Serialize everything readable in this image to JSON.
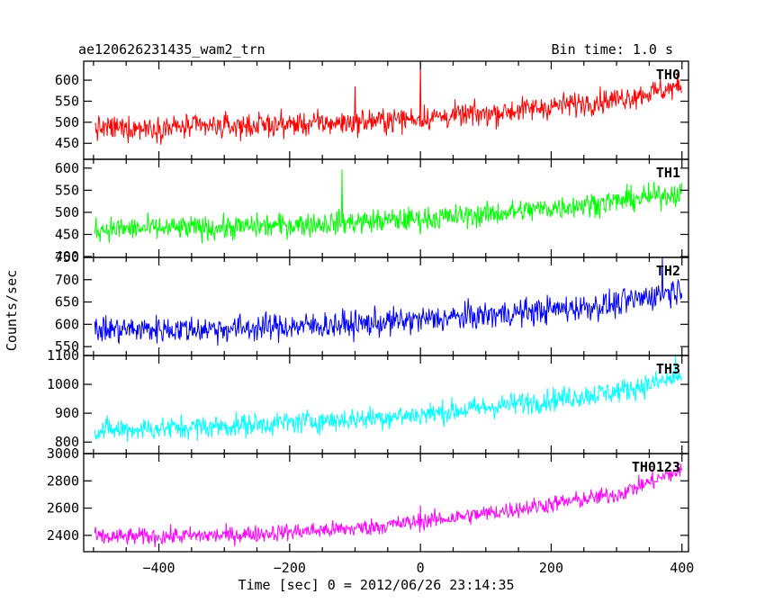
{
  "header": {
    "title": "ae120626231435_wam2_trn",
    "bin_time": "Bin time: 1.0 s"
  },
  "axes": {
    "xlabel": "Time [sec] 0 = 2012/06/26 23:14:35",
    "ylabel": "Counts/sec"
  },
  "chart_data": {
    "type": "line",
    "x_range": [
      -515,
      410
    ],
    "x_ticks": [
      -400,
      -200,
      0,
      200,
      400
    ],
    "x_tick_labels": [
      "−400",
      "−200",
      "0",
      "200",
      "400"
    ],
    "bin_time_s": 1.0,
    "grid": false,
    "panels": [
      {
        "name": "TH0",
        "color": "#ff0000",
        "ylim": [
          412,
          645
        ],
        "yticks": [
          450,
          500,
          550,
          600
        ],
        "trend": {
          "x": [
            -500,
            -300,
            -100,
            0,
            100,
            300,
            400
          ],
          "y": [
            485,
            490,
            500,
            510,
            520,
            555,
            585
          ]
        },
        "noise_amp": 32,
        "spikes": [
          {
            "x": 0,
            "y": 645
          },
          {
            "x": -100,
            "y": 585
          }
        ]
      },
      {
        "name": "TH1",
        "color": "#00ff00",
        "ylim": [
          398,
          620
        ],
        "yticks": [
          400,
          450,
          500,
          550,
          600
        ],
        "trend": {
          "x": [
            -500,
            -300,
            -100,
            0,
            100,
            300,
            400
          ],
          "y": [
            462,
            465,
            478,
            485,
            495,
            525,
            545
          ]
        },
        "noise_amp": 30,
        "spikes": [
          {
            "x": -120,
            "y": 597
          }
        ]
      },
      {
        "name": "TH2",
        "color": "#0000ff",
        "ylim": [
          530,
          750
        ],
        "yticks": [
          550,
          600,
          650,
          700,
          750
        ],
        "trend": {
          "x": [
            -500,
            -300,
            -100,
            0,
            100,
            300,
            400
          ],
          "y": [
            588,
            590,
            600,
            610,
            620,
            645,
            680
          ]
        },
        "noise_amp": 34,
        "spikes": [
          {
            "x": 370,
            "y": 750
          }
        ]
      },
      {
        "name": "TH3",
        "color": "#00ffff",
        "ylim": [
          760,
          1100
        ],
        "yticks": [
          800,
          900,
          1000,
          1100
        ],
        "trend": {
          "x": [
            -500,
            -300,
            -100,
            0,
            100,
            300,
            400
          ],
          "y": [
            840,
            855,
            880,
            895,
            920,
            975,
            1025
          ]
        },
        "noise_amp": 45,
        "spikes": [
          {
            "x": 390,
            "y": 1100
          }
        ]
      },
      {
        "name": "TH0123",
        "color": "#ff00ff",
        "ylim": [
          2280,
          3000
        ],
        "yticks": [
          2400,
          2600,
          2800,
          3000
        ],
        "trend": {
          "x": [
            -500,
            -300,
            -100,
            0,
            100,
            300,
            400
          ],
          "y": [
            2385,
            2400,
            2450,
            2500,
            2560,
            2700,
            2880
          ]
        },
        "noise_amp": 70,
        "spikes": [
          {
            "x": 0,
            "y": 2620
          }
        ]
      }
    ]
  }
}
